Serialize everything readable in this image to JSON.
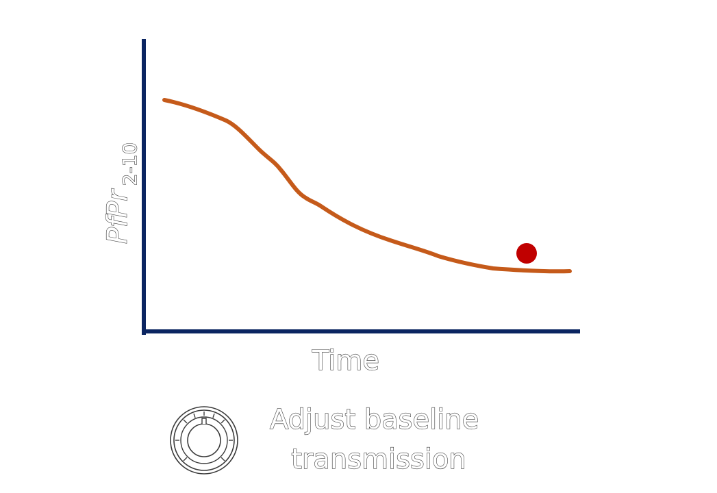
{
  "chart_data": {
    "type": "line",
    "xlabel": "Time",
    "ylabel": "PfPr",
    "ylabel_subscript": "2-10",
    "colors": {
      "axis": "#0b2561",
      "curve": "#c55a1a",
      "marker": "#c00000"
    },
    "grid": false
  },
  "control": {
    "icon": "dial-knob-icon",
    "label_line1": "Adjust baseline",
    "label_line2": "transmission"
  }
}
